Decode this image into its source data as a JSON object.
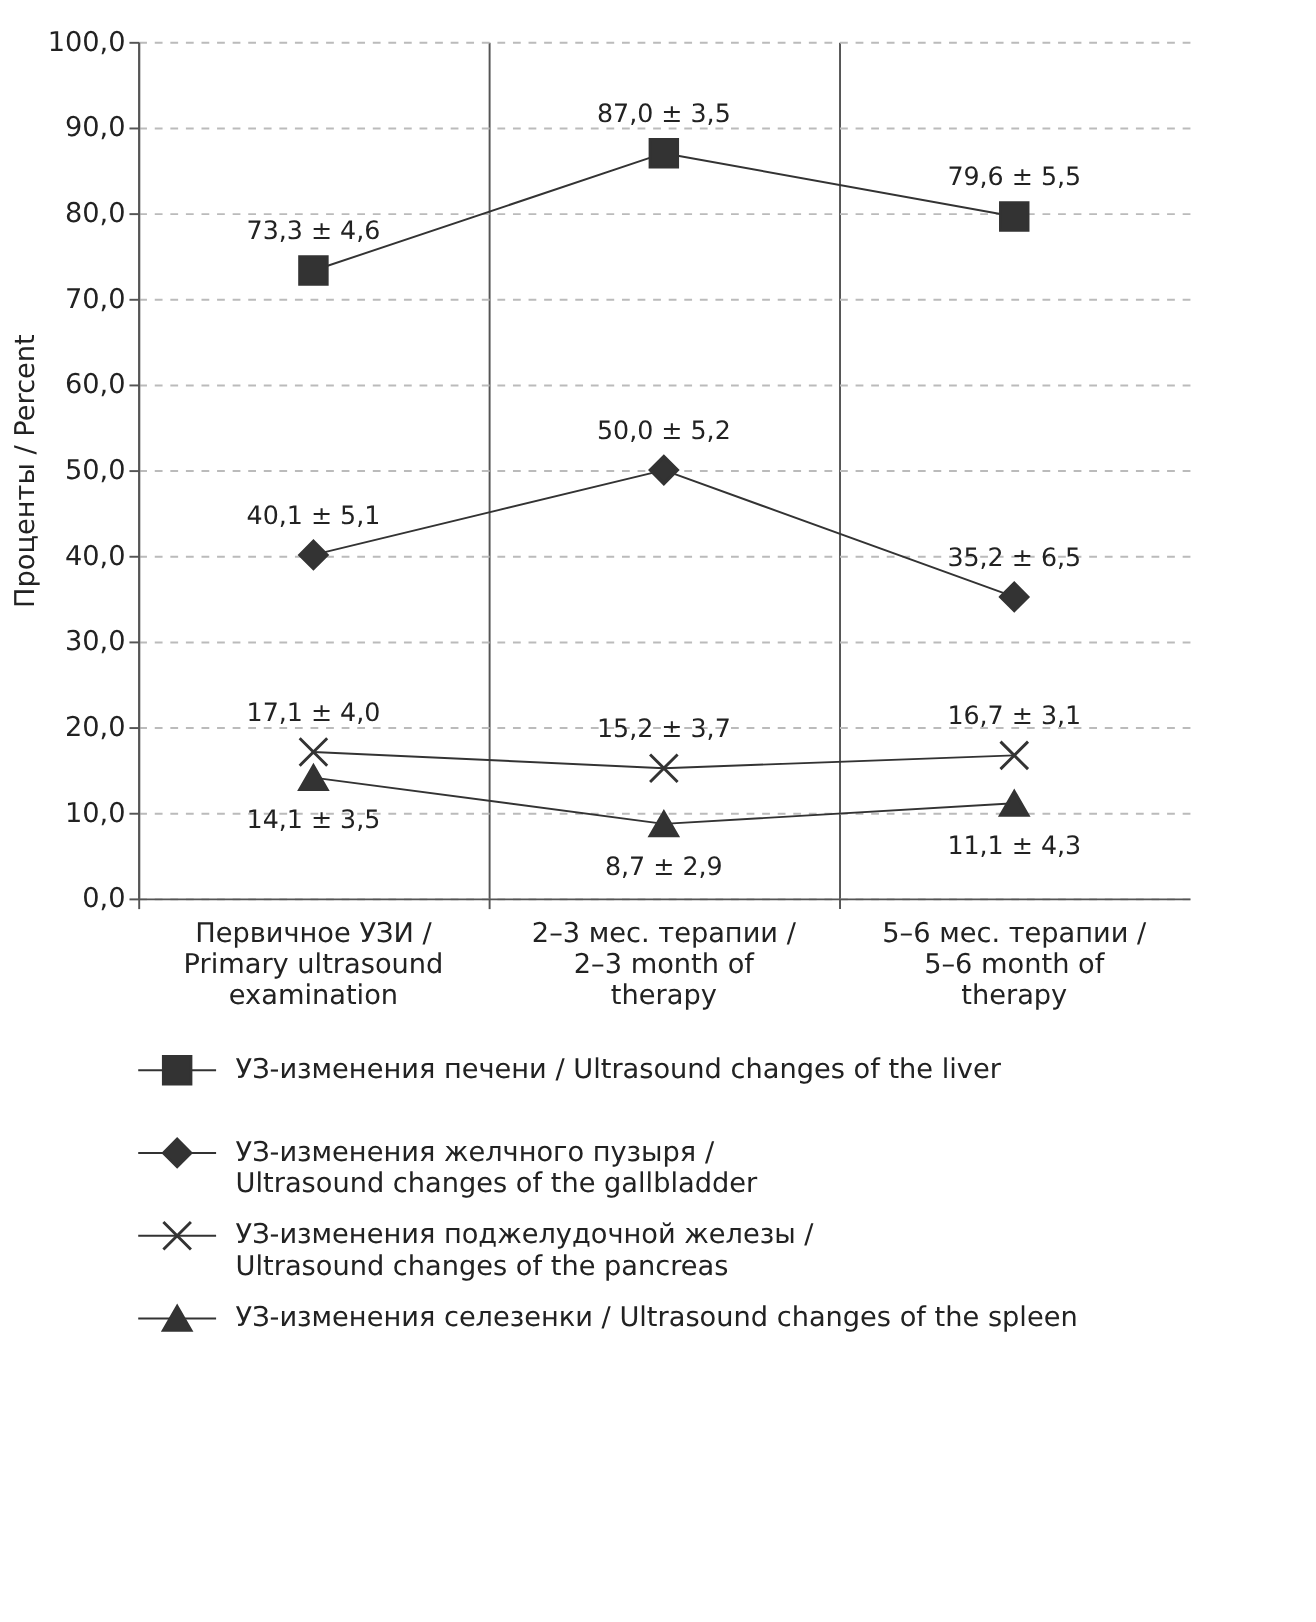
{
  "chart_data": {
    "type": "line",
    "ylabel": "Проценты / Percent",
    "categories": [
      "Первичное УЗИ / Primary ultrasound examination",
      "2–3 мес. терапии / 2–3 month of therapy",
      "5–6 мес. терапии / 5–6 month of therapy"
    ],
    "series": [
      {
        "name": "УЗ-изменения печени / Ultrasound changes of the liver",
        "color": "#333333",
        "marker": "square",
        "values": [
          73.3,
          87.0,
          79.6
        ],
        "value_labels": [
          "73,3 ± 4,6",
          "87,0 ± 3,5",
          "79,6 ± 5,5"
        ]
      },
      {
        "name": "УЗ-изменения желчного пузыря / Ultrasound changes of the gallbladder",
        "color": "#333333",
        "marker": "diamond",
        "values": [
          40.1,
          50.0,
          35.2
        ],
        "value_labels": [
          "40,1 ± 5,1",
          "50,0 ± 5,2",
          "35,2 ± 6,5"
        ]
      },
      {
        "name": "УЗ-изменения поджелудочной железы / Ultrasound changes of the pancreas",
        "color": "#333333",
        "marker": "cross",
        "values": [
          17.1,
          15.2,
          16.7
        ],
        "value_labels": [
          "17,1 ± 4,0",
          "15,2 ± 3,7",
          "16,7 ± 3,1"
        ]
      },
      {
        "name": "УЗ-изменения селезенки / Ultrasound changes of the spleen",
        "color": "#333333",
        "marker": "triangle",
        "values": [
          14.1,
          8.7,
          11.1
        ],
        "value_labels": [
          "14,1 ± 3,5",
          "8,7 ± 2,9",
          "11,1 ± 4,3"
        ]
      }
    ],
    "ylim": [
      0,
      100
    ],
    "yticks": [
      {
        "value": 0,
        "label": "0,0"
      },
      {
        "value": 10,
        "label": "10,0"
      },
      {
        "value": 20,
        "label": "20,0"
      },
      {
        "value": 30,
        "label": "30,0"
      },
      {
        "value": 40,
        "label": "40,0"
      },
      {
        "value": 50,
        "label": "50,0"
      },
      {
        "value": 60,
        "label": "60,0"
      },
      {
        "value": 70,
        "label": "70,0"
      },
      {
        "value": 80,
        "label": "80,0"
      },
      {
        "value": 90,
        "label": "90,0"
      },
      {
        "value": 100,
        "label": "100,0"
      }
    ],
    "grid": true,
    "legend": "bottom",
    "line_style": "solid"
  }
}
